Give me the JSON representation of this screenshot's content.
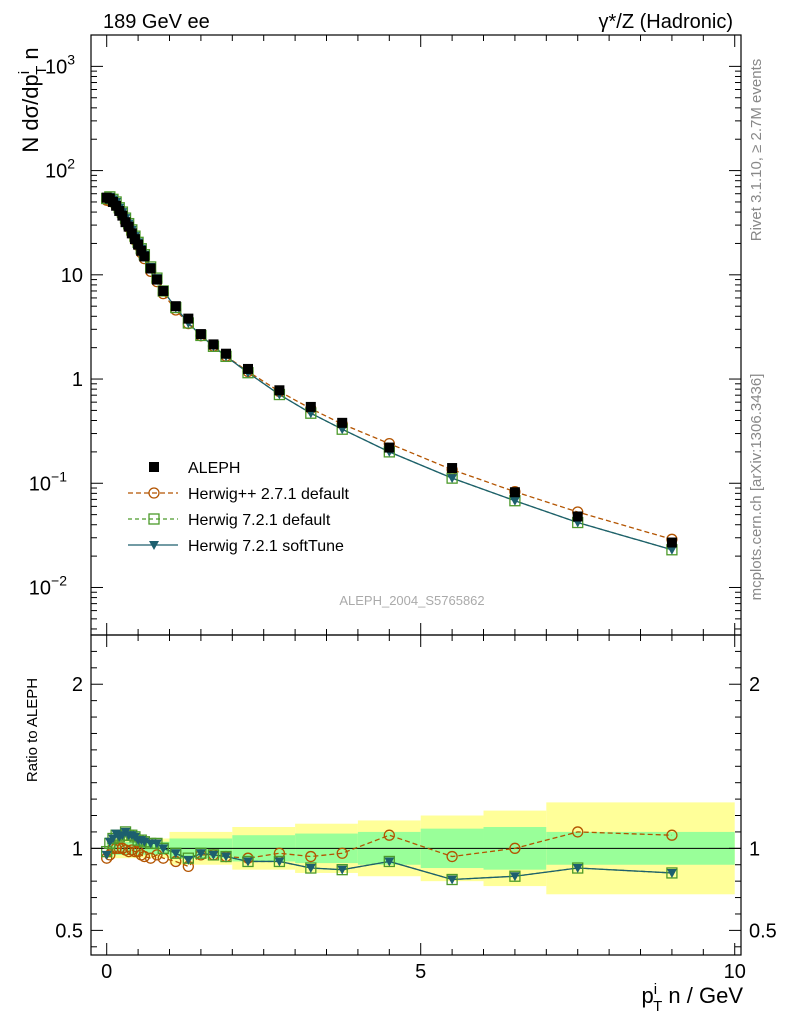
{
  "header": {
    "left": "189 GeV ee",
    "right": "γ*/Z (Hadronic)"
  },
  "side_labels": {
    "rivet": "Rivet 3.1.10, ≥ 2.7M events",
    "mcplots": "mcplots.cern.ch [arXiv:1306.3436]"
  },
  "watermark": "ALEPH_2004_S5765862",
  "colors": {
    "data": "#000000",
    "herwigpp": "#b35400",
    "herwig_default": "#4c9a2a",
    "herwig_soft": "#1d5f6e",
    "band_inner": "#99ff99",
    "band_outer": "#ffff99"
  },
  "chart_data": [
    {
      "type": "scatter",
      "title": "",
      "xlabel": "",
      "ylabel": "N dσ/dp^i_T n",
      "yscale": "log",
      "xlim": [
        -0.25,
        10.1
      ],
      "ylim": [
        0.0035,
        2000
      ],
      "yticks": [
        {
          "v": 1000,
          "base": "10",
          "exp": "3"
        },
        {
          "v": 100,
          "base": "10",
          "exp": "2"
        },
        {
          "v": 10,
          "base": "10",
          "exp": ""
        },
        {
          "v": 1,
          "base": "1",
          "exp": ""
        },
        {
          "v": 0.1,
          "base": "10",
          "exp": "−1"
        },
        {
          "v": 0.01,
          "base": "10",
          "exp": "−2"
        }
      ],
      "legend_position": "lower-left",
      "x": [
        0.0,
        0.05,
        0.1,
        0.15,
        0.2,
        0.25,
        0.3,
        0.35,
        0.4,
        0.45,
        0.5,
        0.55,
        0.6,
        0.7,
        0.8,
        0.9,
        1.1,
        1.3,
        1.5,
        1.7,
        1.9,
        2.25,
        2.75,
        3.25,
        3.75,
        4.5,
        5.5,
        6.5,
        7.5,
        9.0
      ],
      "series": [
        {
          "name": "ALEPH",
          "values": [
            55,
            54,
            50,
            46,
            41,
            37,
            32,
            29,
            25,
            22,
            19.5,
            17,
            15,
            11.5,
            9.0,
            7.0,
            5.0,
            3.8,
            2.7,
            2.15,
            1.75,
            1.25,
            0.78,
            0.54,
            0.38,
            0.22,
            0.14,
            0.082,
            0.048,
            0.027
          ]
        },
        {
          "name": "Herwig++ 2.7.1 default",
          "values": [
            52,
            51,
            50,
            46,
            41,
            37,
            32,
            28.5,
            24.8,
            21.6,
            19.1,
            16.3,
            14.3,
            10.8,
            8.6,
            6.6,
            4.6,
            3.4,
            2.6,
            2.07,
            1.66,
            1.18,
            0.76,
            0.52,
            0.37,
            0.24,
            0.135,
            0.083,
            0.053,
            0.029
          ]
        },
        {
          "name": "Herwig 7.2.1 default",
          "values": [
            54,
            56,
            53,
            50,
            44,
            40,
            35,
            31,
            27,
            23.5,
            20.5,
            17.8,
            15.6,
            11.9,
            9.3,
            7.0,
            4.85,
            3.45,
            2.62,
            2.06,
            1.65,
            1.15,
            0.71,
            0.47,
            0.33,
            0.2,
            0.112,
            0.068,
            0.042,
            0.023
          ]
        },
        {
          "name": "Herwig 7.2.1 softTune",
          "values": [
            53,
            56,
            53,
            50,
            44,
            40,
            35,
            31,
            27,
            23.5,
            20.5,
            17.8,
            15.6,
            11.9,
            9.3,
            7.0,
            4.85,
            3.45,
            2.62,
            2.06,
            1.65,
            1.15,
            0.71,
            0.47,
            0.33,
            0.2,
            0.112,
            0.068,
            0.042,
            0.023
          ]
        }
      ]
    },
    {
      "type": "line",
      "title": "",
      "xlabel": "p^i_T n / GeV",
      "ylabel": "Ratio to ALEPH",
      "xlim": [
        -0.25,
        10.1
      ],
      "ylim": [
        0.35,
        2.3
      ],
      "xticks": [
        0,
        5,
        10
      ],
      "yticks": [
        0.5,
        1,
        2
      ],
      "x": [
        0.0,
        0.05,
        0.1,
        0.15,
        0.2,
        0.25,
        0.3,
        0.35,
        0.4,
        0.45,
        0.5,
        0.55,
        0.6,
        0.7,
        0.8,
        0.9,
        1.1,
        1.3,
        1.5,
        1.7,
        1.9,
        2.25,
        2.75,
        3.25,
        3.75,
        4.5,
        5.5,
        6.5,
        7.5,
        9.0
      ],
      "series": [
        {
          "name": "Herwig++ 2.7.1 default",
          "values": [
            0.94,
            0.96,
            1.0,
            1.0,
            1.0,
            1.0,
            0.99,
            0.98,
            0.99,
            0.98,
            0.98,
            0.96,
            0.95,
            0.94,
            0.96,
            0.94,
            0.92,
            0.89,
            0.96,
            0.96,
            0.95,
            0.94,
            0.97,
            0.95,
            0.97,
            1.08,
            0.95,
            1.0,
            1.1,
            1.08
          ]
        },
        {
          "name": "Herwig 7.2.1 default",
          "values": [
            0.98,
            1.03,
            1.06,
            1.08,
            1.07,
            1.08,
            1.1,
            1.08,
            1.08,
            1.07,
            1.05,
            1.05,
            1.04,
            1.03,
            1.03,
            1.0,
            0.97,
            0.94,
            0.97,
            0.96,
            0.95,
            0.92,
            0.92,
            0.88,
            0.87,
            0.92,
            0.81,
            0.83,
            0.88,
            0.85
          ]
        },
        {
          "name": "Herwig 7.2.1 softTune",
          "values": [
            0.96,
            1.04,
            1.06,
            1.09,
            1.07,
            1.08,
            1.1,
            1.08,
            1.08,
            1.07,
            1.05,
            1.05,
            1.04,
            1.03,
            1.03,
            1.0,
            0.97,
            0.93,
            0.97,
            0.96,
            0.95,
            0.92,
            0.92,
            0.88,
            0.87,
            0.92,
            0.81,
            0.83,
            0.88,
            0.85
          ]
        }
      ],
      "uncertainty_band": {
        "bins": [
          [
            0,
            1
          ],
          [
            1,
            2
          ],
          [
            2,
            3
          ],
          [
            3,
            4
          ],
          [
            4,
            5
          ],
          [
            5,
            6
          ],
          [
            6,
            7
          ],
          [
            7,
            10
          ]
        ],
        "inner": [
          0.04,
          0.06,
          0.08,
          0.09,
          0.1,
          0.12,
          0.13,
          0.1
        ],
        "outer": [
          0.06,
          0.1,
          0.13,
          0.15,
          0.17,
          0.2,
          0.23,
          0.28
        ]
      }
    }
  ]
}
